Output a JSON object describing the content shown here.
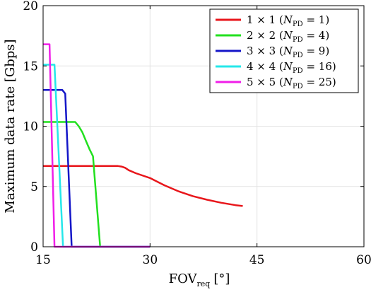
{
  "chart_data": {
    "type": "line",
    "xlabel": "FOV",
    "xlabel_sub": "req",
    "xlabel_unit": "[°]",
    "ylabel": "Maximum data rate [Gbps]",
    "xlim": [
      15,
      60
    ],
    "ylim": [
      0,
      20
    ],
    "xticks": [
      15,
      30,
      45,
      60
    ],
    "yticks": [
      0,
      5,
      10,
      15,
      20
    ],
    "grid": true,
    "legend_position": "top-right",
    "series": [
      {
        "name": "1 × 1 (N_PD = 1)",
        "legend": {
          "size": "1 × 1",
          "npd": "1"
        },
        "color": "#e8161b",
        "x": [
          15,
          16,
          18,
          20,
          22,
          24,
          25,
          25.5,
          26,
          26.5,
          27,
          28,
          30,
          32,
          34,
          36,
          38,
          40,
          42,
          43
        ],
        "y": [
          6.7,
          6.7,
          6.7,
          6.7,
          6.7,
          6.7,
          6.7,
          6.7,
          6.65,
          6.55,
          6.35,
          6.1,
          5.7,
          5.1,
          4.6,
          4.2,
          3.9,
          3.65,
          3.45,
          3.38
        ]
      },
      {
        "name": "2 × 2 (N_PD = 4)",
        "legend": {
          "size": "2 × 2",
          "npd": "4"
        },
        "color": "#22e01f",
        "x": [
          15,
          17,
          19,
          19.5,
          20,
          20.5,
          21,
          21.5,
          22,
          23,
          30
        ],
        "y": [
          10.35,
          10.35,
          10.35,
          10.35,
          10.0,
          9.5,
          8.8,
          8.1,
          7.5,
          0,
          0
        ]
      },
      {
        "name": "3 × 3 (N_PD = 9)",
        "legend": {
          "size": "3 × 3",
          "npd": "9"
        },
        "color": "#1416c8",
        "x": [
          15,
          17,
          17.7,
          18.1,
          19,
          30
        ],
        "y": [
          13.0,
          13.0,
          13.0,
          12.7,
          0,
          0
        ]
      },
      {
        "name": "4 × 4 (N_PD = 16)",
        "legend": {
          "size": "4 × 4",
          "npd": "16"
        },
        "color": "#25e7ea",
        "x": [
          15,
          16.6,
          17.8,
          30
        ],
        "y": [
          15.1,
          15.1,
          0,
          0
        ]
      },
      {
        "name": "5 × 5 (N_PD = 25)",
        "legend": {
          "size": "5 × 5",
          "npd": "25"
        },
        "color": "#f01ee8",
        "x": [
          15,
          15.9,
          16.6,
          30
        ],
        "y": [
          16.8,
          16.8,
          0,
          0
        ]
      }
    ]
  }
}
